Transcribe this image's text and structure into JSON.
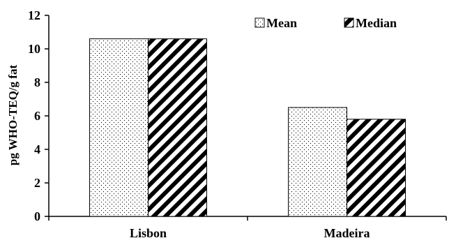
{
  "chart_data": {
    "type": "bar",
    "title": "",
    "xlabel": "",
    "ylabel": "pg WHO-TEQ/g fat",
    "categories": [
      "Lisbon",
      "Madeira"
    ],
    "series": [
      {
        "name": "Mean",
        "values": [
          10.6,
          6.5
        ]
      },
      {
        "name": "Median",
        "values": [
          10.6,
          5.8
        ]
      }
    ],
    "ylim": [
      0,
      12
    ],
    "yticks": [
      "0",
      "2",
      "4",
      "6",
      "8",
      "10",
      "12"
    ],
    "grid": false,
    "legend_position": "top-right",
    "pattern_colors": {
      "fill": "#ffffff",
      "stroke": "#000000"
    }
  }
}
